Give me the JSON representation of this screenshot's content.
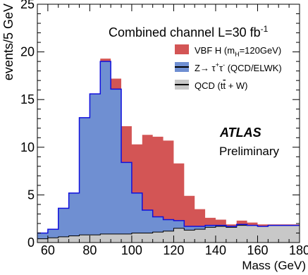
{
  "chart_data": {
    "type": "area",
    "title": "Combined channel  L=30 fb",
    "title_sup": "-1",
    "xlabel": "Mass (GeV)",
    "ylabel": "events/5 GeV",
    "xlim": [
      60,
      180
    ],
    "ylim": [
      0,
      25
    ],
    "stacked": true,
    "histogram_step": true,
    "bin_edges": [
      55,
      60,
      65,
      70,
      75,
      80,
      85,
      90,
      95,
      100,
      105,
      110,
      115,
      120,
      125,
      130,
      135,
      140,
      145,
      150,
      155,
      160,
      165,
      170,
      175,
      180
    ],
    "x_ticks": [
      "60",
      "80",
      "100",
      "120",
      "140",
      "160",
      "180"
    ],
    "y_ticks": [
      "0",
      "5",
      "10",
      "15",
      "20",
      "25"
    ],
    "legend_position": "top-right",
    "atlas_label": "ATLAS",
    "atlas_sublabel": "Preliminary",
    "series": [
      {
        "name": "QCD (tt̄ + W)",
        "legend_text": "QCD (t",
        "legend_text_tbar": "t",
        "legend_text_tail": " + W)",
        "color": "#c8c8c8",
        "values": [
          0.4,
          0.5,
          0.6,
          0.7,
          0.8,
          0.8,
          0.9,
          0.9,
          0.9,
          1.0,
          1.0,
          1.1,
          1.2,
          1.5,
          1.3,
          1.4,
          1.6,
          1.7,
          1.6,
          1.8,
          1.8,
          1.7,
          1.8,
          1.8,
          1.8
        ]
      },
      {
        "name": "Z→ τ⁺τ⁻ (QCD/ELWK)",
        "legend_text": "Z→ τ",
        "legend_sup1": "+",
        "legend_mid": "τ",
        "legend_sup2": "-",
        "legend_tail": " (QCD/ELWK)",
        "color": "#6f8fd2",
        "edge_color": "#1010dd",
        "values": [
          0.6,
          0.9,
          3.0,
          4.5,
          12.3,
          14.8,
          18.1,
          15.2,
          7.5,
          4.2,
          2.4,
          1.6,
          1.2,
          0.8,
          0.4,
          0.3,
          0.2,
          0.1,
          0.1,
          0.1,
          0.0,
          0.0,
          0.0,
          0.0,
          0.0
        ]
      },
      {
        "name": "VBF H (m_H=120GeV)",
        "legend_text": "VBF H (m",
        "legend_sub": "H",
        "legend_tail": "=120GeV)",
        "color": "#d35555",
        "values": [
          0.0,
          0.0,
          0.0,
          0.0,
          0.0,
          0.0,
          0.3,
          1.1,
          3.8,
          5.1,
          7.9,
          8.4,
          8.3,
          6.0,
          3.2,
          1.8,
          0.8,
          0.6,
          0.2,
          0.4,
          0.3,
          0.2,
          0.1,
          0.1,
          0.1
        ]
      }
    ]
  }
}
